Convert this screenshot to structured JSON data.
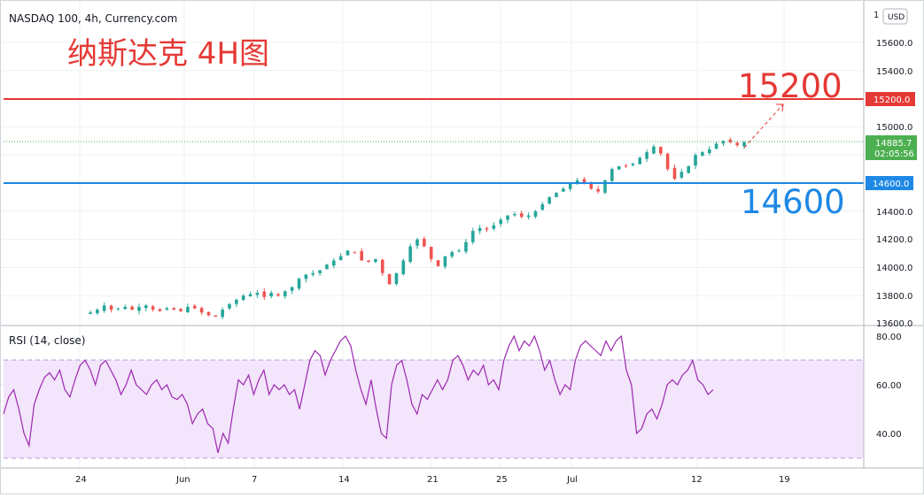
{
  "header": {
    "symbol_line": "NASDAQ 100, 4h, Currency.com",
    "annotation_title": "纳斯达克 4H图"
  },
  "price_scale": {
    "currency_button": "USD",
    "ticks": [
      "15600.0",
      "15400.0",
      "15200.0",
      "15000.0",
      "14800.0",
      "14600.0",
      "14400.0",
      "14200.0",
      "14000.0",
      "13800.0",
      "13600.0"
    ],
    "current_price": "14885.7",
    "countdown": "02:05:56",
    "resistance_tag": "15200.0",
    "support_tag": "14600.0"
  },
  "annotations": {
    "resistance_label": "15200",
    "support_label": "14600"
  },
  "rsi_panel": {
    "legend": "RSI (14, close)",
    "ticks": [
      "80.00",
      "60.00",
      "40.00"
    ]
  },
  "time_axis": {
    "labels": [
      "24",
      "Jun",
      "7",
      "14",
      "21",
      "25",
      "Jul",
      "12",
      "19"
    ]
  },
  "colors": {
    "up": "#26a69a",
    "down": "#ef5350",
    "resistance": "#e53935",
    "support": "#1e88e5",
    "rsi_line": "#9c27b0",
    "rsi_band": "#f3e5fb",
    "current_price": "#4caf50"
  },
  "chart_data": [
    {
      "type": "candlestick",
      "title": "NASDAQ 100, 4h, Currency.com",
      "ylim": [
        13560,
        15800
      ],
      "x_tick_labels": [
        "24",
        "Jun",
        "7",
        "14",
        "21",
        "25",
        "Jul",
        "12",
        "19"
      ],
      "horizontal_lines": [
        {
          "label": "15200",
          "value": 15200,
          "color": "#e53935"
        },
        {
          "label": "14600",
          "value": 14600,
          "color": "#1e88e5"
        }
      ],
      "current_price": 14885.7,
      "close_path": [
        [
          0,
          13680
        ],
        [
          8,
          13700
        ],
        [
          16,
          13730
        ],
        [
          24,
          13700
        ],
        [
          32,
          13710
        ],
        [
          40,
          13720
        ],
        [
          48,
          13700
        ],
        [
          56,
          13720
        ],
        [
          64,
          13730
        ],
        [
          72,
          13700
        ],
        [
          80,
          13690
        ],
        [
          88,
          13710
        ],
        [
          96,
          13700
        ],
        [
          104,
          13690
        ],
        [
          112,
          13720
        ],
        [
          120,
          13710
        ],
        [
          128,
          13680
        ],
        [
          136,
          13660
        ],
        [
          144,
          13650
        ],
        [
          152,
          13700
        ],
        [
          160,
          13740
        ],
        [
          168,
          13770
        ],
        [
          176,
          13800
        ],
        [
          184,
          13810
        ],
        [
          192,
          13820
        ],
        [
          200,
          13790
        ],
        [
          208,
          13820
        ],
        [
          216,
          13800
        ],
        [
          224,
          13830
        ],
        [
          232,
          13860
        ],
        [
          240,
          13920
        ],
        [
          248,
          13950
        ],
        [
          256,
          13960
        ],
        [
          264,
          13980
        ],
        [
          272,
          14020
        ],
        [
          280,
          14050
        ],
        [
          288,
          14080
        ],
        [
          296,
          14120
        ],
        [
          304,
          14110
        ],
        [
          312,
          14050
        ],
        [
          320,
          14040
        ],
        [
          328,
          14060
        ],
        [
          336,
          13960
        ],
        [
          344,
          13880
        ],
        [
          352,
          13960
        ],
        [
          360,
          14050
        ],
        [
          368,
          14150
        ],
        [
          376,
          14200
        ],
        [
          384,
          14150
        ],
        [
          392,
          14060
        ],
        [
          400,
          14010
        ],
        [
          408,
          14080
        ],
        [
          416,
          14110
        ],
        [
          424,
          14120
        ],
        [
          432,
          14180
        ],
        [
          440,
          14260
        ],
        [
          448,
          14280
        ],
        [
          456,
          14270
        ],
        [
          464,
          14300
        ],
        [
          472,
          14340
        ],
        [
          480,
          14370
        ],
        [
          488,
          14380
        ],
        [
          496,
          14360
        ],
        [
          504,
          14370
        ],
        [
          512,
          14400
        ],
        [
          520,
          14450
        ],
        [
          528,
          14500
        ],
        [
          536,
          14530
        ],
        [
          544,
          14560
        ],
        [
          552,
          14600
        ],
        [
          560,
          14620
        ],
        [
          568,
          14600
        ],
        [
          576,
          14560
        ],
        [
          584,
          14540
        ],
        [
          592,
          14620
        ],
        [
          600,
          14700
        ],
        [
          608,
          14720
        ],
        [
          616,
          14720
        ],
        [
          624,
          14740
        ],
        [
          632,
          14780
        ],
        [
          640,
          14820
        ],
        [
          648,
          14860
        ],
        [
          656,
          14810
        ],
        [
          664,
          14700
        ],
        [
          672,
          14630
        ],
        [
          680,
          14680
        ],
        [
          688,
          14720
        ],
        [
          696,
          14800
        ],
        [
          704,
          14820
        ],
        [
          712,
          14840
        ],
        [
          720,
          14880
        ],
        [
          728,
          14900
        ],
        [
          736,
          14890
        ],
        [
          744,
          14870
        ],
        [
          752,
          14890
        ]
      ]
    },
    {
      "type": "line",
      "title": "RSI (14, close)",
      "ylim": [
        25,
        82
      ],
      "bands": [
        30,
        70
      ],
      "points": [
        [
          0,
          48
        ],
        [
          6,
          55
        ],
        [
          12,
          58
        ],
        [
          18,
          50
        ],
        [
          24,
          40
        ],
        [
          30,
          35
        ],
        [
          36,
          52
        ],
        [
          42,
          58
        ],
        [
          48,
          63
        ],
        [
          54,
          65
        ],
        [
          60,
          62
        ],
        [
          66,
          66
        ],
        [
          72,
          58
        ],
        [
          78,
          55
        ],
        [
          84,
          62
        ],
        [
          90,
          68
        ],
        [
          96,
          70
        ],
        [
          102,
          66
        ],
        [
          108,
          60
        ],
        [
          114,
          68
        ],
        [
          120,
          70
        ],
        [
          126,
          66
        ],
        [
          132,
          62
        ],
        [
          138,
          56
        ],
        [
          144,
          60
        ],
        [
          150,
          66
        ],
        [
          156,
          60
        ],
        [
          162,
          58
        ],
        [
          168,
          56
        ],
        [
          174,
          60
        ],
        [
          180,
          62
        ],
        [
          186,
          58
        ],
        [
          192,
          60
        ],
        [
          198,
          55
        ],
        [
          204,
          54
        ],
        [
          210,
          56
        ],
        [
          216,
          52
        ],
        [
          222,
          44
        ],
        [
          228,
          48
        ],
        [
          234,
          50
        ],
        [
          240,
          44
        ],
        [
          246,
          42
        ],
        [
          252,
          32
        ],
        [
          258,
          40
        ],
        [
          264,
          36
        ],
        [
          270,
          50
        ],
        [
          276,
          62
        ],
        [
          282,
          60
        ],
        [
          288,
          64
        ],
        [
          294,
          56
        ],
        [
          300,
          62
        ],
        [
          306,
          66
        ],
        [
          312,
          56
        ],
        [
          318,
          60
        ],
        [
          324,
          58
        ],
        [
          330,
          60
        ],
        [
          336,
          56
        ],
        [
          342,
          58
        ],
        [
          348,
          50
        ],
        [
          354,
          60
        ],
        [
          360,
          70
        ],
        [
          366,
          74
        ],
        [
          372,
          72
        ],
        [
          378,
          64
        ],
        [
          384,
          70
        ],
        [
          390,
          74
        ],
        [
          396,
          78
        ],
        [
          402,
          80
        ],
        [
          408,
          76
        ],
        [
          414,
          66
        ],
        [
          420,
          58
        ],
        [
          426,
          52
        ],
        [
          432,
          62
        ],
        [
          438,
          50
        ],
        [
          444,
          40
        ],
        [
          450,
          38
        ],
        [
          456,
          60
        ],
        [
          462,
          68
        ],
        [
          468,
          70
        ],
        [
          474,
          62
        ],
        [
          480,
          52
        ],
        [
          486,
          48
        ],
        [
          492,
          56
        ],
        [
          498,
          54
        ],
        [
          504,
          58
        ],
        [
          510,
          62
        ],
        [
          516,
          58
        ],
        [
          522,
          62
        ],
        [
          528,
          70
        ],
        [
          534,
          72
        ],
        [
          540,
          68
        ],
        [
          546,
          62
        ],
        [
          552,
          66
        ],
        [
          558,
          64
        ],
        [
          564,
          68
        ],
        [
          570,
          60
        ],
        [
          576,
          62
        ],
        [
          582,
          58
        ],
        [
          588,
          70
        ],
        [
          594,
          76
        ],
        [
          600,
          80
        ],
        [
          606,
          74
        ],
        [
          612,
          78
        ],
        [
          618,
          76
        ],
        [
          624,
          80
        ],
        [
          630,
          74
        ],
        [
          636,
          66
        ],
        [
          642,
          70
        ],
        [
          648,
          62
        ],
        [
          654,
          56
        ],
        [
          660,
          60
        ],
        [
          666,
          58
        ],
        [
          672,
          70
        ],
        [
          678,
          76
        ],
        [
          684,
          78
        ],
        [
          690,
          76
        ],
        [
          696,
          74
        ],
        [
          702,
          72
        ],
        [
          708,
          78
        ],
        [
          714,
          74
        ],
        [
          720,
          78
        ],
        [
          726,
          80
        ],
        [
          732,
          66
        ],
        [
          738,
          60
        ],
        [
          744,
          40
        ],
        [
          750,
          42
        ],
        [
          756,
          48
        ],
        [
          762,
          50
        ],
        [
          768,
          46
        ],
        [
          774,
          52
        ],
        [
          780,
          60
        ],
        [
          786,
          62
        ],
        [
          792,
          60
        ],
        [
          798,
          64
        ],
        [
          804,
          66
        ],
        [
          810,
          70
        ],
        [
          816,
          62
        ],
        [
          822,
          60
        ],
        [
          828,
          56
        ],
        [
          834,
          58
        ]
      ]
    }
  ]
}
